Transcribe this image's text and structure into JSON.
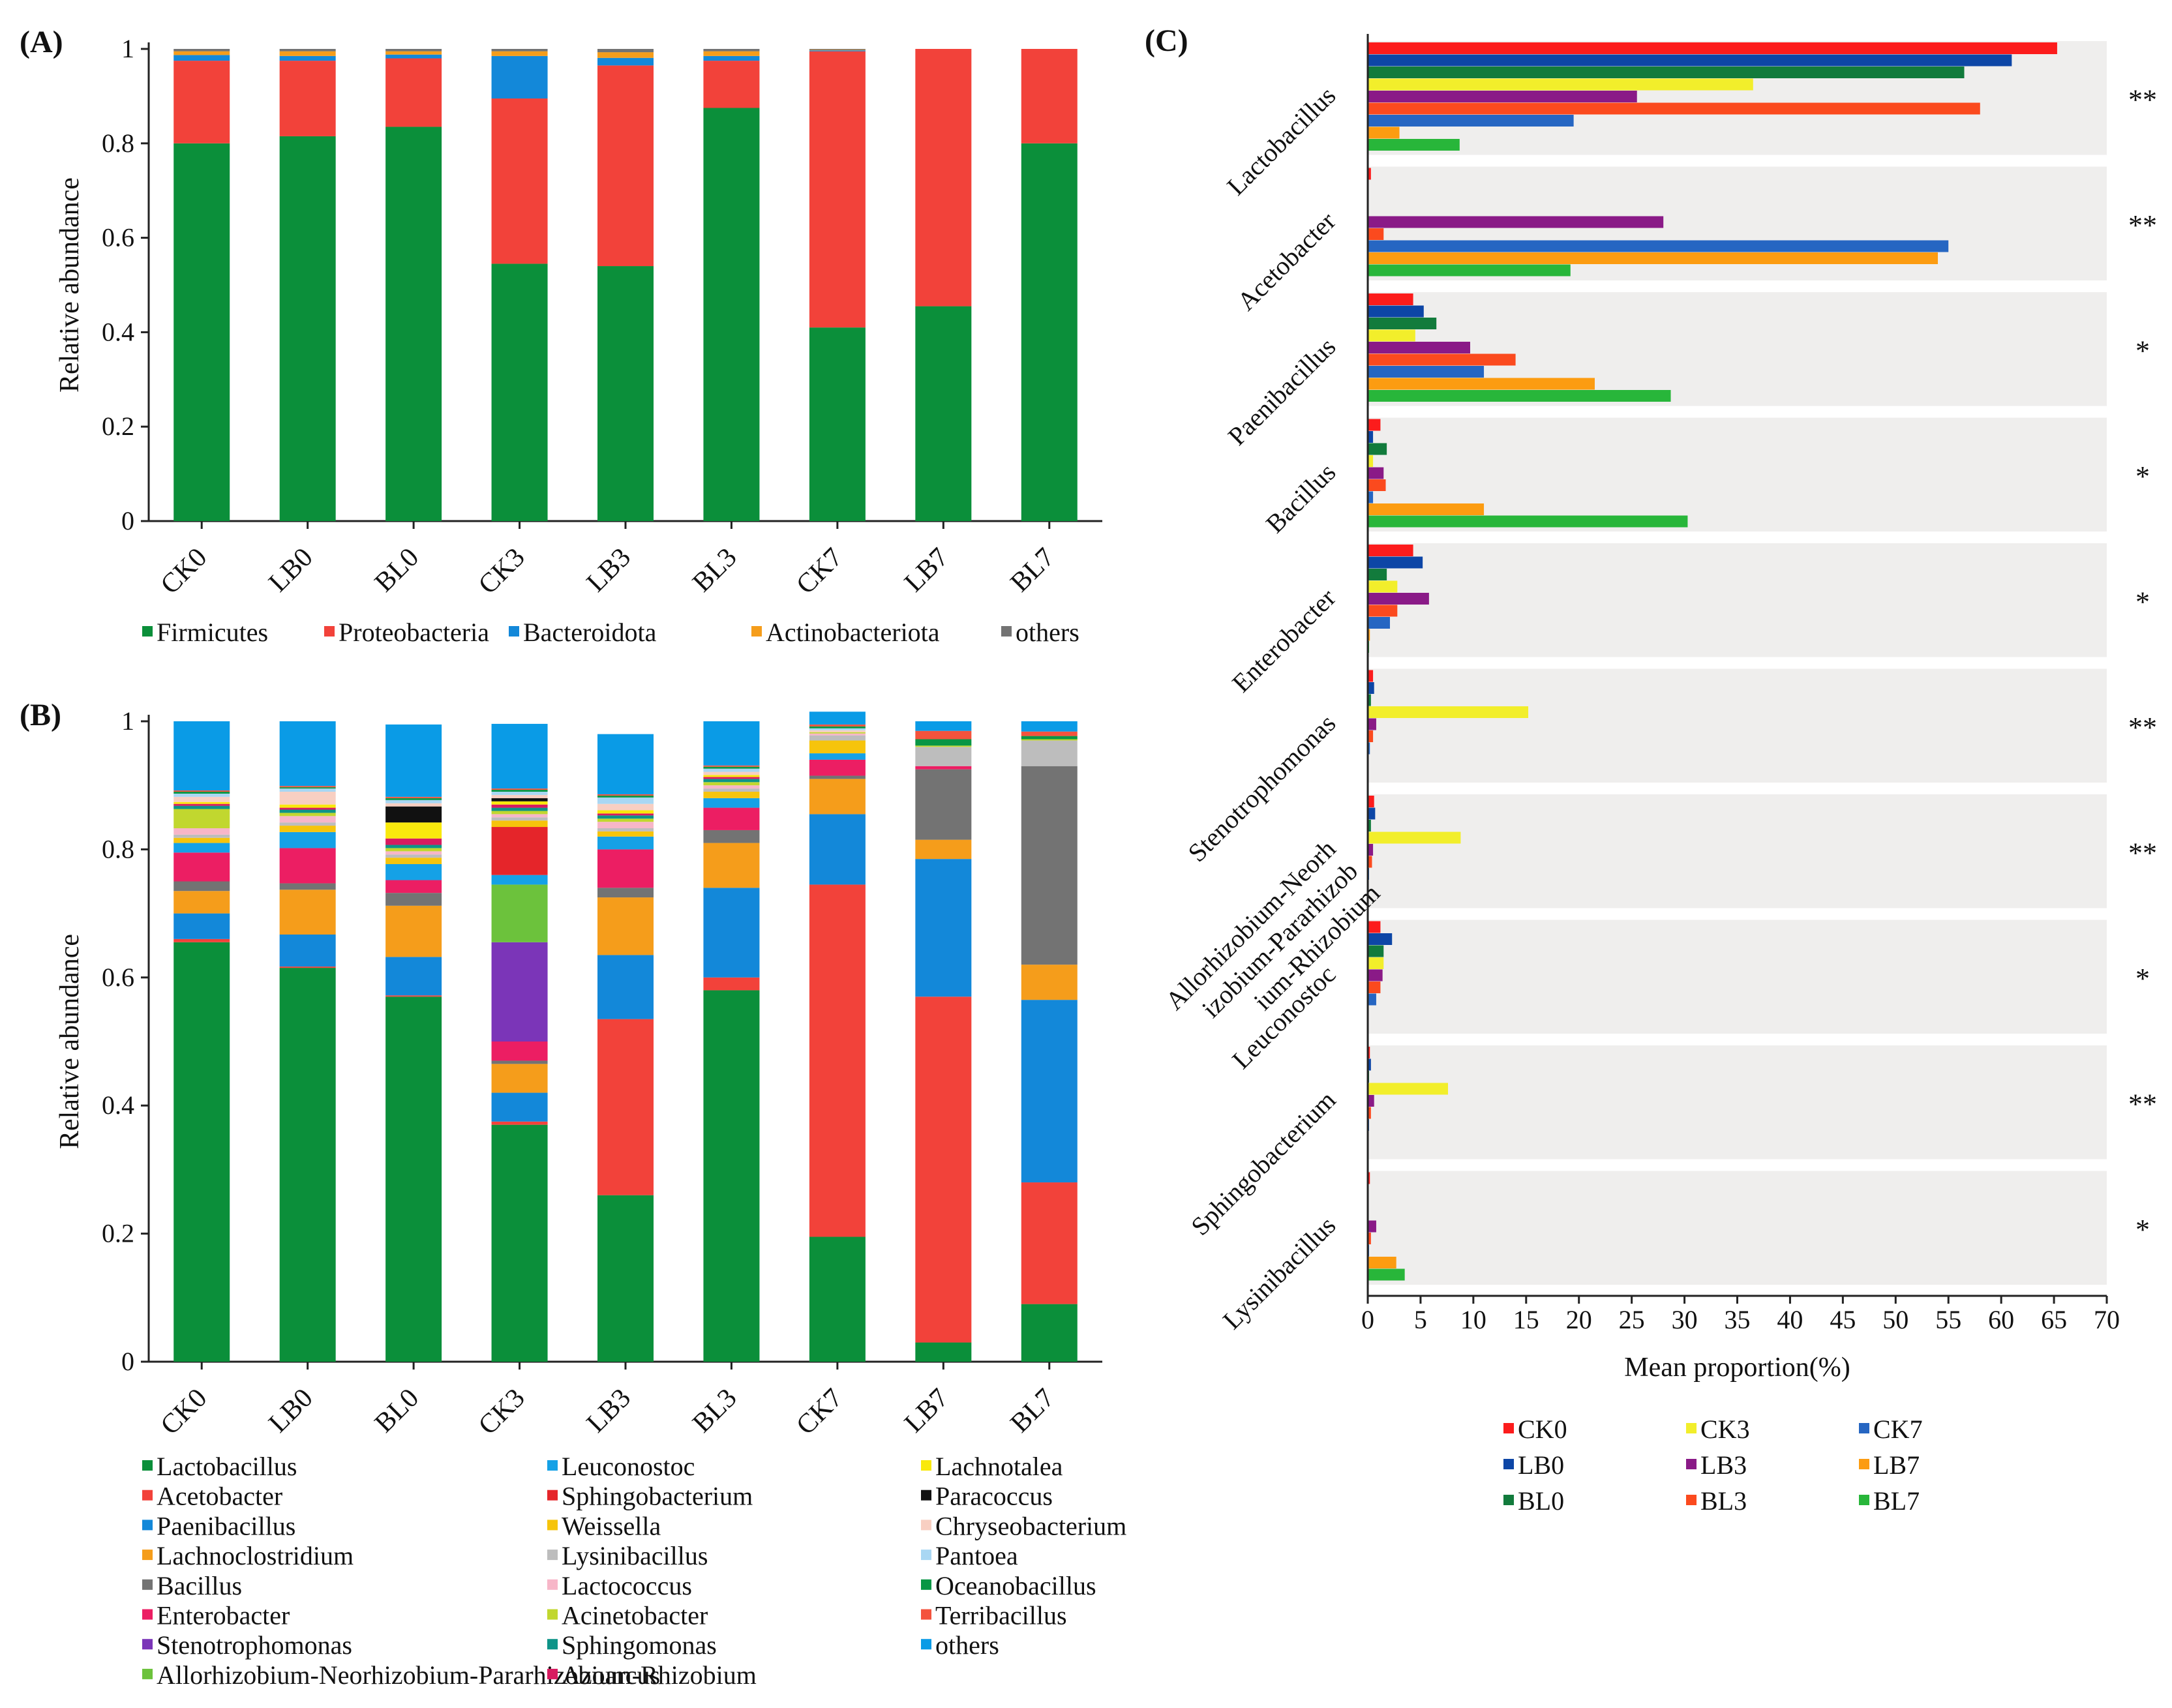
{
  "colors": {
    "Firmicutes": "#0b8f3a",
    "Proteobacteria": "#f2423a",
    "Bacteroidota": "#1388d9",
    "Actinobacteriota": "#f59d1b",
    "others_a": "#737373",
    "Lactobacillus": "#0b8f3a",
    "Acetobacter": "#f2423a",
    "Paenibacillus": "#1388d9",
    "Lachnoclostridium": "#f59d1b",
    "Bacillus": "#737373",
    "Enterobacter": "#ec1e63",
    "Stenotrophomonas": "#7b35b8",
    "Allorhizobium": "#6cc23c",
    "Leuconostoc": "#15a1e6",
    "Sphingobacterium": "#e5252a",
    "Weissella": "#f6c40c",
    "Lysinibacillus": "#bdbdbd",
    "Lactococcus": "#f7b6c8",
    "Acinetobacter": "#c1d72f",
    "Sphingomonas": "#0e9488",
    "Azoarcus": "#d81b60",
    "Lachnotalea": "#f9e90d",
    "Paracoccus": "#111111",
    "Chryseobacterium": "#f8cfc2",
    "Pantoea": "#a9d7f3",
    "Oceanobacillus": "#099645",
    "Terribacillus": "#f4533d",
    "others_b": "#0a9be6",
    "CK0": "#fc1c1c",
    "LB0": "#0d46a6",
    "BL0": "#127b3c",
    "CK3": "#f2ee2b",
    "LB3": "#8a1a87",
    "BL3": "#fb4a1e",
    "CK7": "#2666c2",
    "LB7": "#fc9c11",
    "BL7": "#28b63a",
    "bandBg": "#efeeed",
    "star": "#e53935"
  },
  "chart_data": [
    {
      "id": "A",
      "panel_label": "(A)",
      "type": "bar",
      "stacked": true,
      "ylabel": "Relative abundance",
      "ylim": [
        0,
        1
      ],
      "yticks": [
        {
          "v": 0,
          "t": "0"
        },
        {
          "v": 0.2,
          "t": "0.2"
        },
        {
          "v": 0.4,
          "t": "0.4"
        },
        {
          "v": 0.6,
          "t": "0.6"
        },
        {
          "v": 0.8,
          "t": "0.8"
        },
        {
          "v": 1,
          "t": "1"
        }
      ],
      "categories": [
        "CK0",
        "LB0",
        "BL0",
        "CK3",
        "LB3",
        "BL3",
        "CK7",
        "LB7",
        "BL7"
      ],
      "series": [
        {
          "name": "Firmicutes",
          "color_key": "Firmicutes",
          "values": [
            0.8,
            0.815,
            0.835,
            0.545,
            0.54,
            0.875,
            0.41,
            0.455,
            0.8
          ]
        },
        {
          "name": "Proteobacteria",
          "color_key": "Proteobacteria",
          "values": [
            0.175,
            0.16,
            0.145,
            0.35,
            0.425,
            0.1,
            0.585,
            0.545,
            0.2
          ]
        },
        {
          "name": "Bacteroidota",
          "color_key": "Bacteroidota",
          "values": [
            0.012,
            0.01,
            0.008,
            0.09,
            0.016,
            0.01,
            0.002,
            0,
            0
          ]
        },
        {
          "name": "Actinobacteriota",
          "color_key": "Actinobacteriota",
          "values": [
            0.008,
            0.01,
            0.007,
            0.01,
            0.012,
            0.01,
            0.001,
            0,
            0
          ]
        },
        {
          "name": "others",
          "color_key": "others_a",
          "values": [
            0.005,
            0.005,
            0.005,
            0.005,
            0.007,
            0.005,
            0.002,
            0,
            0
          ]
        }
      ]
    },
    {
      "id": "B",
      "panel_label": "(B)",
      "type": "bar",
      "stacked": true,
      "ylabel": "Relative abundance",
      "ylim": [
        0,
        1
      ],
      "yticks": [
        {
          "v": 0,
          "t": "0"
        },
        {
          "v": 0.2,
          "t": "0.2"
        },
        {
          "v": 0.4,
          "t": "0.4"
        },
        {
          "v": 0.6,
          "t": "0.6"
        },
        {
          "v": 0.8,
          "t": "0.8"
        },
        {
          "v": 1,
          "t": "1"
        }
      ],
      "categories": [
        "CK0",
        "LB0",
        "BL0",
        "CK3",
        "LB3",
        "BL3",
        "CK7",
        "LB7",
        "BL7"
      ],
      "series": [
        {
          "name": "Lactobacillus",
          "color_key": "Lactobacillus",
          "values": [
            0.655,
            0.615,
            0.57,
            0.37,
            0.26,
            0.58,
            0.195,
            0.03,
            0.09
          ]
        },
        {
          "name": "Acetobacter",
          "color_key": "Acetobacter",
          "values": [
            0.005,
            0.002,
            0.002,
            0.005,
            0.275,
            0.02,
            0.55,
            0.54,
            0.19
          ]
        },
        {
          "name": "Paenibacillus",
          "color_key": "Paenibacillus",
          "values": [
            0.04,
            0.05,
            0.06,
            0.045,
            0.1,
            0.14,
            0.11,
            0.215,
            0.285
          ]
        },
        {
          "name": "Lachnoclostridium",
          "color_key": "Lachnoclostridium",
          "values": [
            0.035,
            0.07,
            0.08,
            0.045,
            0.09,
            0.07,
            0.055,
            0.03,
            0.055
          ]
        },
        {
          "name": "Bacillus",
          "color_key": "Bacillus",
          "values": [
            0.015,
            0.01,
            0.02,
            0.005,
            0.015,
            0.02,
            0.005,
            0.11,
            0.31
          ]
        },
        {
          "name": "Enterobacter",
          "color_key": "Enterobacter",
          "values": [
            0.045,
            0.055,
            0.02,
            0.03,
            0.06,
            0.035,
            0.025,
            0.005,
            0
          ]
        },
        {
          "name": "Stenotrophomonas",
          "color_key": "Stenotrophomonas",
          "values": [
            0,
            0,
            0,
            0.155,
            0,
            0,
            0,
            0,
            0
          ]
        },
        {
          "name": "Allorhizobium-Neorhizobium-Pararhizobium-Rhizobium",
          "color_key": "Allorhizobium",
          "values": [
            0,
            0,
            0,
            0.09,
            0,
            0,
            0,
            0,
            0
          ]
        },
        {
          "name": "Leuconostoc",
          "color_key": "Leuconostoc",
          "values": [
            0.015,
            0.025,
            0.025,
            0.015,
            0.02,
            0.015,
            0.01,
            0,
            0
          ]
        },
        {
          "name": "Sphingobacterium",
          "color_key": "Sphingobacterium",
          "values": [
            0,
            0,
            0,
            0.075,
            0,
            0,
            0,
            0,
            0
          ]
        },
        {
          "name": "Weissella",
          "color_key": "Weissella",
          "values": [
            0.008,
            0.01,
            0.01,
            0.01,
            0.008,
            0.01,
            0.02,
            0,
            0
          ]
        },
        {
          "name": "Lysinibacillus",
          "color_key": "Lysinibacillus",
          "values": [
            0.005,
            0.005,
            0.005,
            0.005,
            0.005,
            0.005,
            0.008,
            0.03,
            0.04
          ]
        },
        {
          "name": "Lactococcus",
          "color_key": "Lactococcus",
          "values": [
            0.01,
            0.01,
            0.005,
            0.005,
            0.01,
            0.005,
            0.003,
            0,
            0
          ]
        },
        {
          "name": "Acinetobacter",
          "color_key": "Acinetobacter",
          "values": [
            0.03,
            0.005,
            0.005,
            0.005,
            0.005,
            0.005,
            0.002,
            0.002,
            0.002
          ]
        },
        {
          "name": "Sphingomonas",
          "color_key": "Sphingomonas",
          "values": [
            0.005,
            0.005,
            0.005,
            0.005,
            0.005,
            0.005,
            0,
            0,
            0
          ]
        },
        {
          "name": "Azoarcus",
          "color_key": "Azoarcus",
          "values": [
            0.003,
            0.003,
            0.01,
            0.005,
            0.003,
            0.003,
            0,
            0,
            0
          ]
        },
        {
          "name": "Lachnotalea",
          "color_key": "Lachnotalea",
          "values": [
            0.003,
            0.005,
            0.025,
            0.005,
            0.005,
            0.003,
            0,
            0,
            0
          ]
        },
        {
          "name": "Paracoccus",
          "color_key": "Paracoccus",
          "values": [
            0,
            0,
            0.025,
            0.005,
            0,
            0,
            0,
            0,
            0
          ]
        },
        {
          "name": "Chryseobacterium",
          "color_key": "Chryseobacterium",
          "values": [
            0.008,
            0.02,
            0.005,
            0.005,
            0.01,
            0.005,
            0.003,
            0,
            0
          ]
        },
        {
          "name": "Pantoea",
          "color_key": "Pantoea",
          "values": [
            0.005,
            0.005,
            0.005,
            0.005,
            0.01,
            0.005,
            0.003,
            0,
            0
          ]
        },
        {
          "name": "Oceanobacillus",
          "color_key": "Oceanobacillus",
          "values": [
            0.003,
            0.002,
            0.003,
            0.003,
            0.003,
            0.003,
            0.003,
            0.01,
            0.005
          ]
        },
        {
          "name": "Terribacillus",
          "color_key": "Terribacillus",
          "values": [
            0.002,
            0.002,
            0.002,
            0.002,
            0.002,
            0.002,
            0.003,
            0.013,
            0.007
          ]
        },
        {
          "name": "others",
          "color_key": "others_b",
          "values": [
            0.108,
            0.101,
            0.113,
            0.101,
            0.094,
            0.069,
            0.02,
            0.015,
            0.016
          ]
        }
      ]
    },
    {
      "id": "C",
      "panel_label": "(C)",
      "type": "bar",
      "orientation": "horizontal",
      "xlabel": "Mean proportion(%)",
      "xlim": [
        0,
        70
      ],
      "xticks": [
        "0",
        "5",
        "10",
        "15",
        "20",
        "25",
        "30",
        "35",
        "40",
        "45",
        "50",
        "55",
        "60",
        "65",
        "70"
      ],
      "series_order": [
        "CK0",
        "LB0",
        "BL0",
        "CK3",
        "LB3",
        "BL3",
        "CK7",
        "LB7",
        "BL7"
      ],
      "legend": [
        "CK0",
        "CK3",
        "CK7",
        "LB0",
        "LB3",
        "LB7",
        "BL0",
        "BL3",
        "BL7"
      ],
      "genera": [
        {
          "label_lines": [
            "Lactobacillus"
          ],
          "values": [
            65.3,
            61,
            56.5,
            36.5,
            25.5,
            58,
            19.5,
            3,
            8.7
          ],
          "significance": "**"
        },
        {
          "label_lines": [
            "Acetobacter"
          ],
          "values": [
            0.3,
            0,
            0,
            0,
            28,
            1.5,
            55,
            54,
            19.2
          ],
          "significance": "**"
        },
        {
          "label_lines": [
            "Paenibacillus"
          ],
          "values": [
            4.3,
            5.3,
            6.5,
            4.5,
            9.7,
            14,
            11,
            21.5,
            28.7
          ],
          "significance": "*"
        },
        {
          "label_lines": [
            "Bacillus"
          ],
          "values": [
            1.2,
            0.5,
            1.8,
            0.5,
            1.5,
            1.7,
            0.5,
            11,
            30.3
          ],
          "significance": "*"
        },
        {
          "label_lines": [
            "Enterobacter"
          ],
          "values": [
            4.3,
            5.2,
            1.8,
            2.8,
            5.8,
            2.8,
            2.1,
            0.2,
            0.1
          ],
          "significance": "*"
        },
        {
          "label_lines": [
            "Stenotrophomonas"
          ],
          "values": [
            0.5,
            0.6,
            0.3,
            15.2,
            0.8,
            0.5,
            0.2,
            0,
            0
          ],
          "significance": "**"
        },
        {
          "label_lines": [
            "Allorhizobium-Neorh",
            "izobium-Pararhizob",
            "ium-Rhizobium"
          ],
          "values": [
            0.6,
            0.7,
            0.3,
            8.8,
            0.5,
            0.4,
            0.1,
            0,
            0
          ],
          "significance": "**"
        },
        {
          "label_lines": [
            "Leuconostoc"
          ],
          "values": [
            1.2,
            2.3,
            1.5,
            1.5,
            1.4,
            1.2,
            0.8,
            0,
            0
          ],
          "significance": "*"
        },
        {
          "label_lines": [
            "Sphingobacterium"
          ],
          "values": [
            0.2,
            0.3,
            0.1,
            7.6,
            0.6,
            0.3,
            0.1,
            0,
            0
          ],
          "significance": "**"
        },
        {
          "label_lines": [
            "Lysinibacillus"
          ],
          "values": [
            0.2,
            0,
            0,
            0,
            0.8,
            0.3,
            0.1,
            2.7,
            3.5
          ],
          "significance": "*"
        }
      ]
    }
  ]
}
